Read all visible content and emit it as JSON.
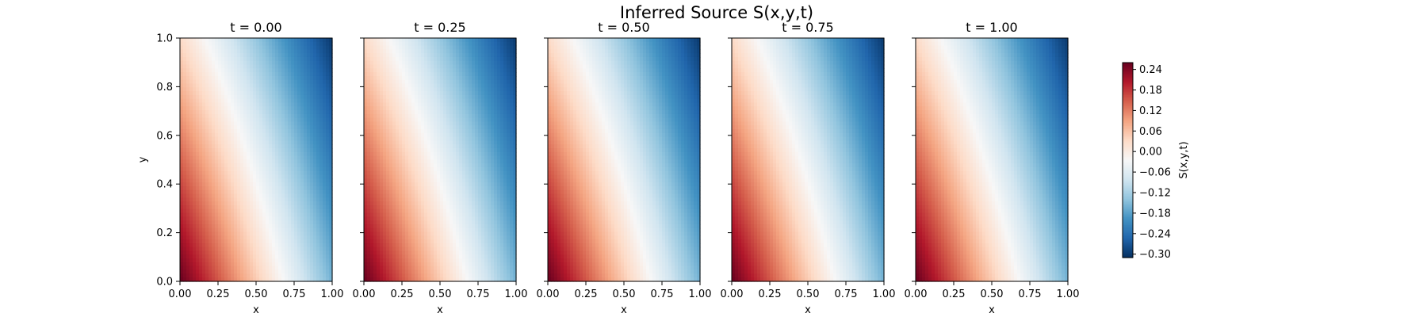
{
  "figure": {
    "title": "Inferred Source S(x,y,t)"
  },
  "chart_data": {
    "type": "heatmap",
    "title": "Inferred Source S(x,y,t)",
    "field": "S(x,y,t)",
    "colormap": "RdBu_r",
    "color_range": [
      -0.31,
      0.26
    ],
    "colorbar": {
      "label": "S(x,y,t)",
      "ticks": [
        0.24,
        0.18,
        0.12,
        0.06,
        0.0,
        -0.06,
        -0.12,
        -0.18,
        -0.24,
        -0.3
      ],
      "tick_labels": [
        "0.24",
        "0.18",
        "0.12",
        "0.06",
        "0.00",
        "−0.06",
        "−0.12",
        "−0.18",
        "−0.24",
        "−0.30"
      ]
    },
    "xlabel": "x",
    "ylabel": "y",
    "xlim": [
      0,
      1
    ],
    "ylim": [
      0,
      1
    ],
    "x_ticks": [
      0.0,
      0.25,
      0.5,
      0.75,
      1.0
    ],
    "x_tick_labels": [
      "0.00",
      "0.25",
      "0.50",
      "0.75",
      "1.00"
    ],
    "y_ticks": [
      0.0,
      0.2,
      0.4,
      0.6,
      0.8,
      1.0
    ],
    "y_tick_labels": [
      "0.0",
      "0.2",
      "0.4",
      "0.6",
      "0.8",
      "1.0"
    ],
    "grid": false,
    "panels": [
      {
        "t": 0.0,
        "title": "t = 0.00",
        "corners": {
          "x0y0": 0.26,
          "x1y0": -0.16,
          "x0y1": 0.03,
          "x1y1": -0.3
        }
      },
      {
        "t": 0.25,
        "title": "t = 0.25",
        "corners": {
          "x0y0": 0.26,
          "x1y0": -0.16,
          "x0y1": 0.03,
          "x1y1": -0.3
        }
      },
      {
        "t": 0.5,
        "title": "t = 0.50",
        "corners": {
          "x0y0": 0.26,
          "x1y0": -0.16,
          "x0y1": 0.03,
          "x1y1": -0.3
        }
      },
      {
        "t": 0.75,
        "title": "t = 0.75",
        "corners": {
          "x0y0": 0.26,
          "x1y0": -0.16,
          "x0y1": 0.03,
          "x1y1": -0.3
        }
      },
      {
        "t": 1.0,
        "title": "t = 1.00",
        "corners": {
          "x0y0": 0.26,
          "x1y0": -0.16,
          "x0y1": 0.03,
          "x1y1": -0.3
        }
      }
    ]
  }
}
